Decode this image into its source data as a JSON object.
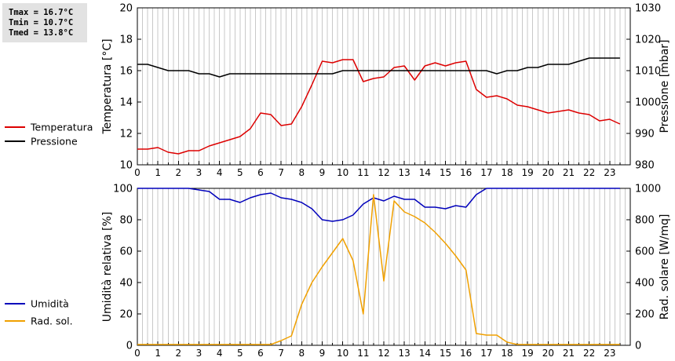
{
  "stats": {
    "tmax": "Tmax = 16.7°C",
    "tmin": "Tmin = 10.7°C",
    "tmed": "Tmed = 13.8°C"
  },
  "colors": {
    "temperature": "#dd0000",
    "pressure": "#000000",
    "humidity": "#0000bb",
    "radiation": "#f0a000",
    "grid": "#c8c8c8"
  },
  "chart_data": [
    {
      "type": "line",
      "x_ticks": [
        "0",
        "1",
        "2",
        "3",
        "4",
        "5",
        "6",
        "7",
        "8",
        "9",
        "10",
        "11",
        "12",
        "13",
        "14",
        "15",
        "16",
        "17",
        "18",
        "19",
        "20",
        "21",
        "22",
        "23"
      ],
      "xlim": [
        0,
        24
      ],
      "ylabel_left": "Temperatura [°C]",
      "ylabel_right": "Pressione [mbar]",
      "ylim_left": [
        10,
        20
      ],
      "ylim_right": [
        980,
        1030
      ],
      "y_ticks_left": [
        "10",
        "12",
        "14",
        "16",
        "18",
        "20"
      ],
      "y_ticks_right": [
        "980",
        "990",
        "1000",
        "1010",
        "1020",
        "1030"
      ],
      "grid": true,
      "legend_position": "left",
      "series": [
        {
          "name": "Temperatura",
          "axis": "left",
          "x": [
            0,
            0.5,
            1,
            1.5,
            2,
            2.5,
            3,
            3.5,
            4,
            4.5,
            5,
            5.5,
            6,
            6.5,
            7,
            7.5,
            8,
            8.5,
            9,
            9.5,
            10,
            10.5,
            11,
            11.5,
            12,
            12.5,
            13,
            13.5,
            14,
            14.5,
            15,
            15.5,
            16,
            16.5,
            17,
            17.5,
            18,
            18.5,
            19,
            19.5,
            20,
            20.5,
            21,
            21.5,
            22,
            22.5,
            23,
            23.5
          ],
          "values": [
            11.0,
            11.0,
            11.1,
            10.8,
            10.7,
            10.9,
            10.9,
            11.2,
            11.4,
            11.6,
            11.8,
            12.3,
            13.3,
            13.2,
            12.5,
            12.6,
            13.7,
            15.1,
            16.6,
            16.5,
            16.7,
            16.7,
            15.3,
            15.5,
            15.6,
            16.2,
            16.3,
            15.4,
            16.3,
            16.5,
            16.3,
            16.5,
            16.6,
            14.8,
            14.3,
            14.4,
            14.2,
            13.8,
            13.7,
            13.5,
            13.3,
            13.4,
            13.5,
            13.3,
            13.2,
            12.8,
            12.9,
            12.6
          ]
        },
        {
          "name": "Pressione",
          "axis": "right",
          "x": [
            0,
            0.5,
            1,
            1.5,
            2,
            2.5,
            3,
            3.5,
            4,
            4.5,
            5,
            5.5,
            6,
            6.5,
            7,
            7.5,
            8,
            8.5,
            9,
            9.5,
            10,
            10.5,
            11,
            11.5,
            12,
            12.5,
            13,
            13.5,
            14,
            14.5,
            15,
            15.5,
            16,
            16.5,
            17,
            17.5,
            18,
            18.5,
            19,
            19.5,
            20,
            20.5,
            21,
            21.5,
            22,
            22.5,
            23,
            23.5
          ],
          "values": [
            1012,
            1012,
            1011,
            1010,
            1010,
            1010,
            1009,
            1009,
            1008,
            1009,
            1009,
            1009,
            1009,
            1009,
            1009,
            1009,
            1009,
            1009,
            1009,
            1009,
            1010,
            1010,
            1010,
            1010,
            1010,
            1010,
            1010,
            1010,
            1010,
            1010,
            1010,
            1010,
            1010,
            1010,
            1010,
            1009,
            1010,
            1010,
            1011,
            1011,
            1012,
            1012,
            1012,
            1013,
            1014,
            1014,
            1014,
            1014
          ]
        }
      ]
    },
    {
      "type": "line",
      "x_ticks": [
        "0",
        "1",
        "2",
        "3",
        "4",
        "5",
        "6",
        "7",
        "8",
        "9",
        "10",
        "11",
        "12",
        "13",
        "14",
        "15",
        "16",
        "17",
        "18",
        "19",
        "20",
        "21",
        "22",
        "23"
      ],
      "xlim": [
        0,
        24
      ],
      "ylabel_left": "Umidità relativa [%]",
      "ylabel_right": "Rad. solare [W/mq]",
      "ylim_left": [
        0,
        100
      ],
      "ylim_right": [
        0,
        1000
      ],
      "y_ticks_left": [
        "0",
        "20",
        "40",
        "60",
        "80",
        "100"
      ],
      "y_ticks_right": [
        "0",
        "200",
        "400",
        "600",
        "800",
        "1000"
      ],
      "grid": true,
      "legend_position": "left",
      "series": [
        {
          "name": "Umidità",
          "axis": "left",
          "x": [
            0,
            0.5,
            1,
            1.5,
            2,
            2.5,
            3,
            3.5,
            4,
            4.5,
            5,
            5.5,
            6,
            6.5,
            7,
            7.5,
            8,
            8.5,
            9,
            9.5,
            10,
            10.5,
            11,
            11.5,
            12,
            12.5,
            13,
            13.5,
            14,
            14.5,
            15,
            15.5,
            16,
            16.5,
            17,
            17.5,
            18,
            18.5,
            19,
            19.5,
            20,
            20.5,
            21,
            21.5,
            22,
            22.5,
            23,
            23.5
          ],
          "values": [
            100,
            100,
            100,
            100,
            100,
            100,
            99,
            98,
            93,
            93,
            91,
            94,
            96,
            97,
            94,
            93,
            91,
            87,
            80,
            79,
            80,
            83,
            90,
            94,
            92,
            95,
            93,
            93,
            88,
            88,
            87,
            89,
            88,
            96,
            100,
            100,
            100,
            100,
            100,
            100,
            100,
            100,
            100,
            100,
            100,
            100,
            100,
            100
          ]
        },
        {
          "name": "Rad. sol.",
          "axis": "right",
          "x": [
            0,
            0.5,
            1,
            1.5,
            2,
            2.5,
            3,
            3.5,
            4,
            4.5,
            5,
            5.5,
            6,
            6.5,
            7,
            7.5,
            8,
            8.5,
            9,
            9.5,
            10,
            10.5,
            11,
            11.5,
            12,
            12.5,
            13,
            13.5,
            14,
            14.5,
            15,
            15.5,
            16,
            16.5,
            17,
            17.5,
            18,
            18.5,
            19,
            19.5,
            20,
            20.5,
            21,
            21.5,
            22,
            22.5,
            23,
            23.5
          ],
          "values": [
            5,
            5,
            5,
            5,
            5,
            5,
            5,
            5,
            5,
            5,
            5,
            5,
            5,
            5,
            30,
            60,
            260,
            400,
            500,
            590,
            680,
            540,
            200,
            960,
            410,
            920,
            850,
            820,
            780,
            720,
            650,
            570,
            480,
            75,
            65,
            65,
            20,
            5,
            5,
            5,
            5,
            5,
            5,
            5,
            5,
            5,
            5,
            5
          ]
        }
      ]
    }
  ]
}
